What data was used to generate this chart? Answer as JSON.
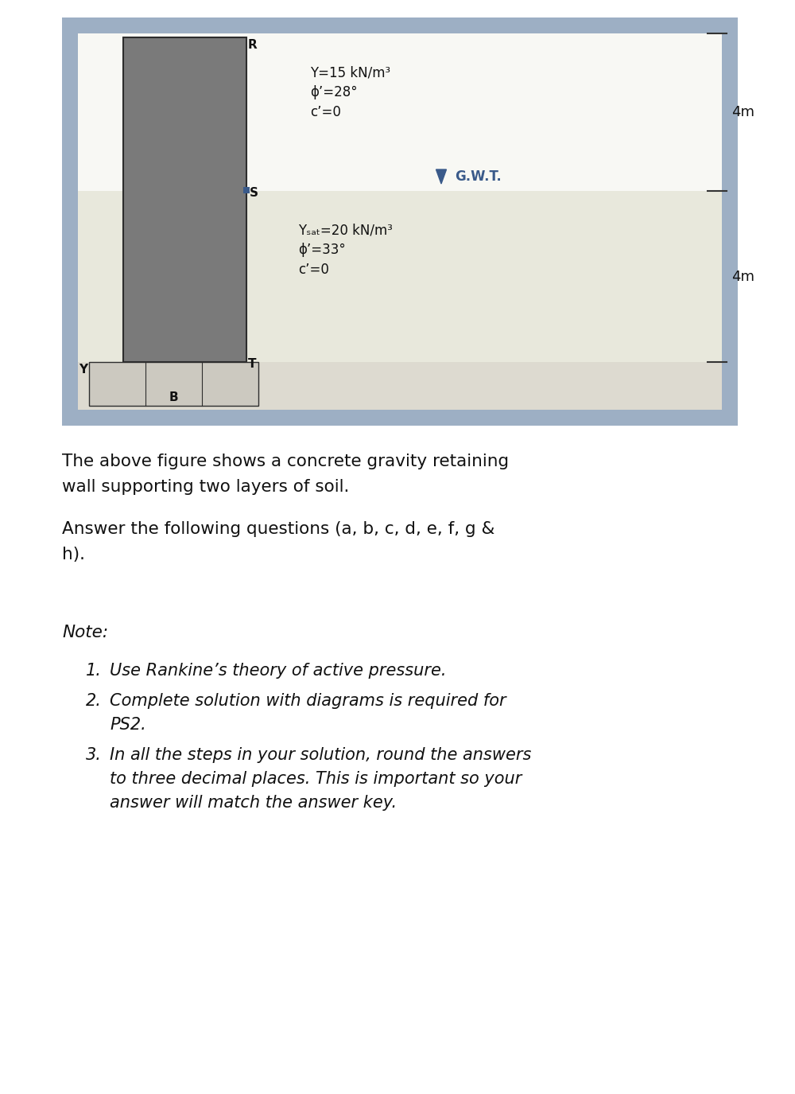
{
  "bg_color": "#f0f0f0",
  "page_bg": "#ffffff",
  "diagram_bg": "#9dafc4",
  "wall_color": "#7a7a7a",
  "wall_border": "#2d2d2d",
  "soil_top_color": "#f8f8f4",
  "soil_bot_color": "#e8e8dc",
  "base_color": "#d8d5cc",
  "dim_line_color": "#333333",
  "text_color": "#111111",
  "gwt_color": "#3a5a8a",
  "layer1_line1": "Y=15 kN/m³",
  "layer1_line2": "ϕ’=28°",
  "layer1_line3": "c’=0",
  "layer2_line1": "Yₛₐₜ=20 kN/m³",
  "layer2_line2": "ϕ’=33°",
  "layer2_line3": "c’=0",
  "gwt_label": "G.W.T.",
  "dim1_label": "4m",
  "dim2_label": "4m",
  "corner_R": "R",
  "corner_S": "S",
  "corner_T": "T",
  "corner_Y": "Y",
  "corner_B": "B",
  "para1_line1": "The above figure shows a concrete gravity retaining",
  "para1_line2": "wall supporting two layers of soil.",
  "para2_line1": "Answer the following questions (a, b, c, d, e, f, g &",
  "para2_line2": "h).",
  "note_label": "Note:",
  "note1": "Use Rankine’s theory of active pressure.",
  "note2_line1": "Complete solution with diagrams is required for",
  "note2_line2": "PS2.",
  "note3_line1": "In all the steps in your solution, round the answers",
  "note3_line2": "to three decimal places. This is important so your",
  "note3_line3": "answer will match the answer key."
}
